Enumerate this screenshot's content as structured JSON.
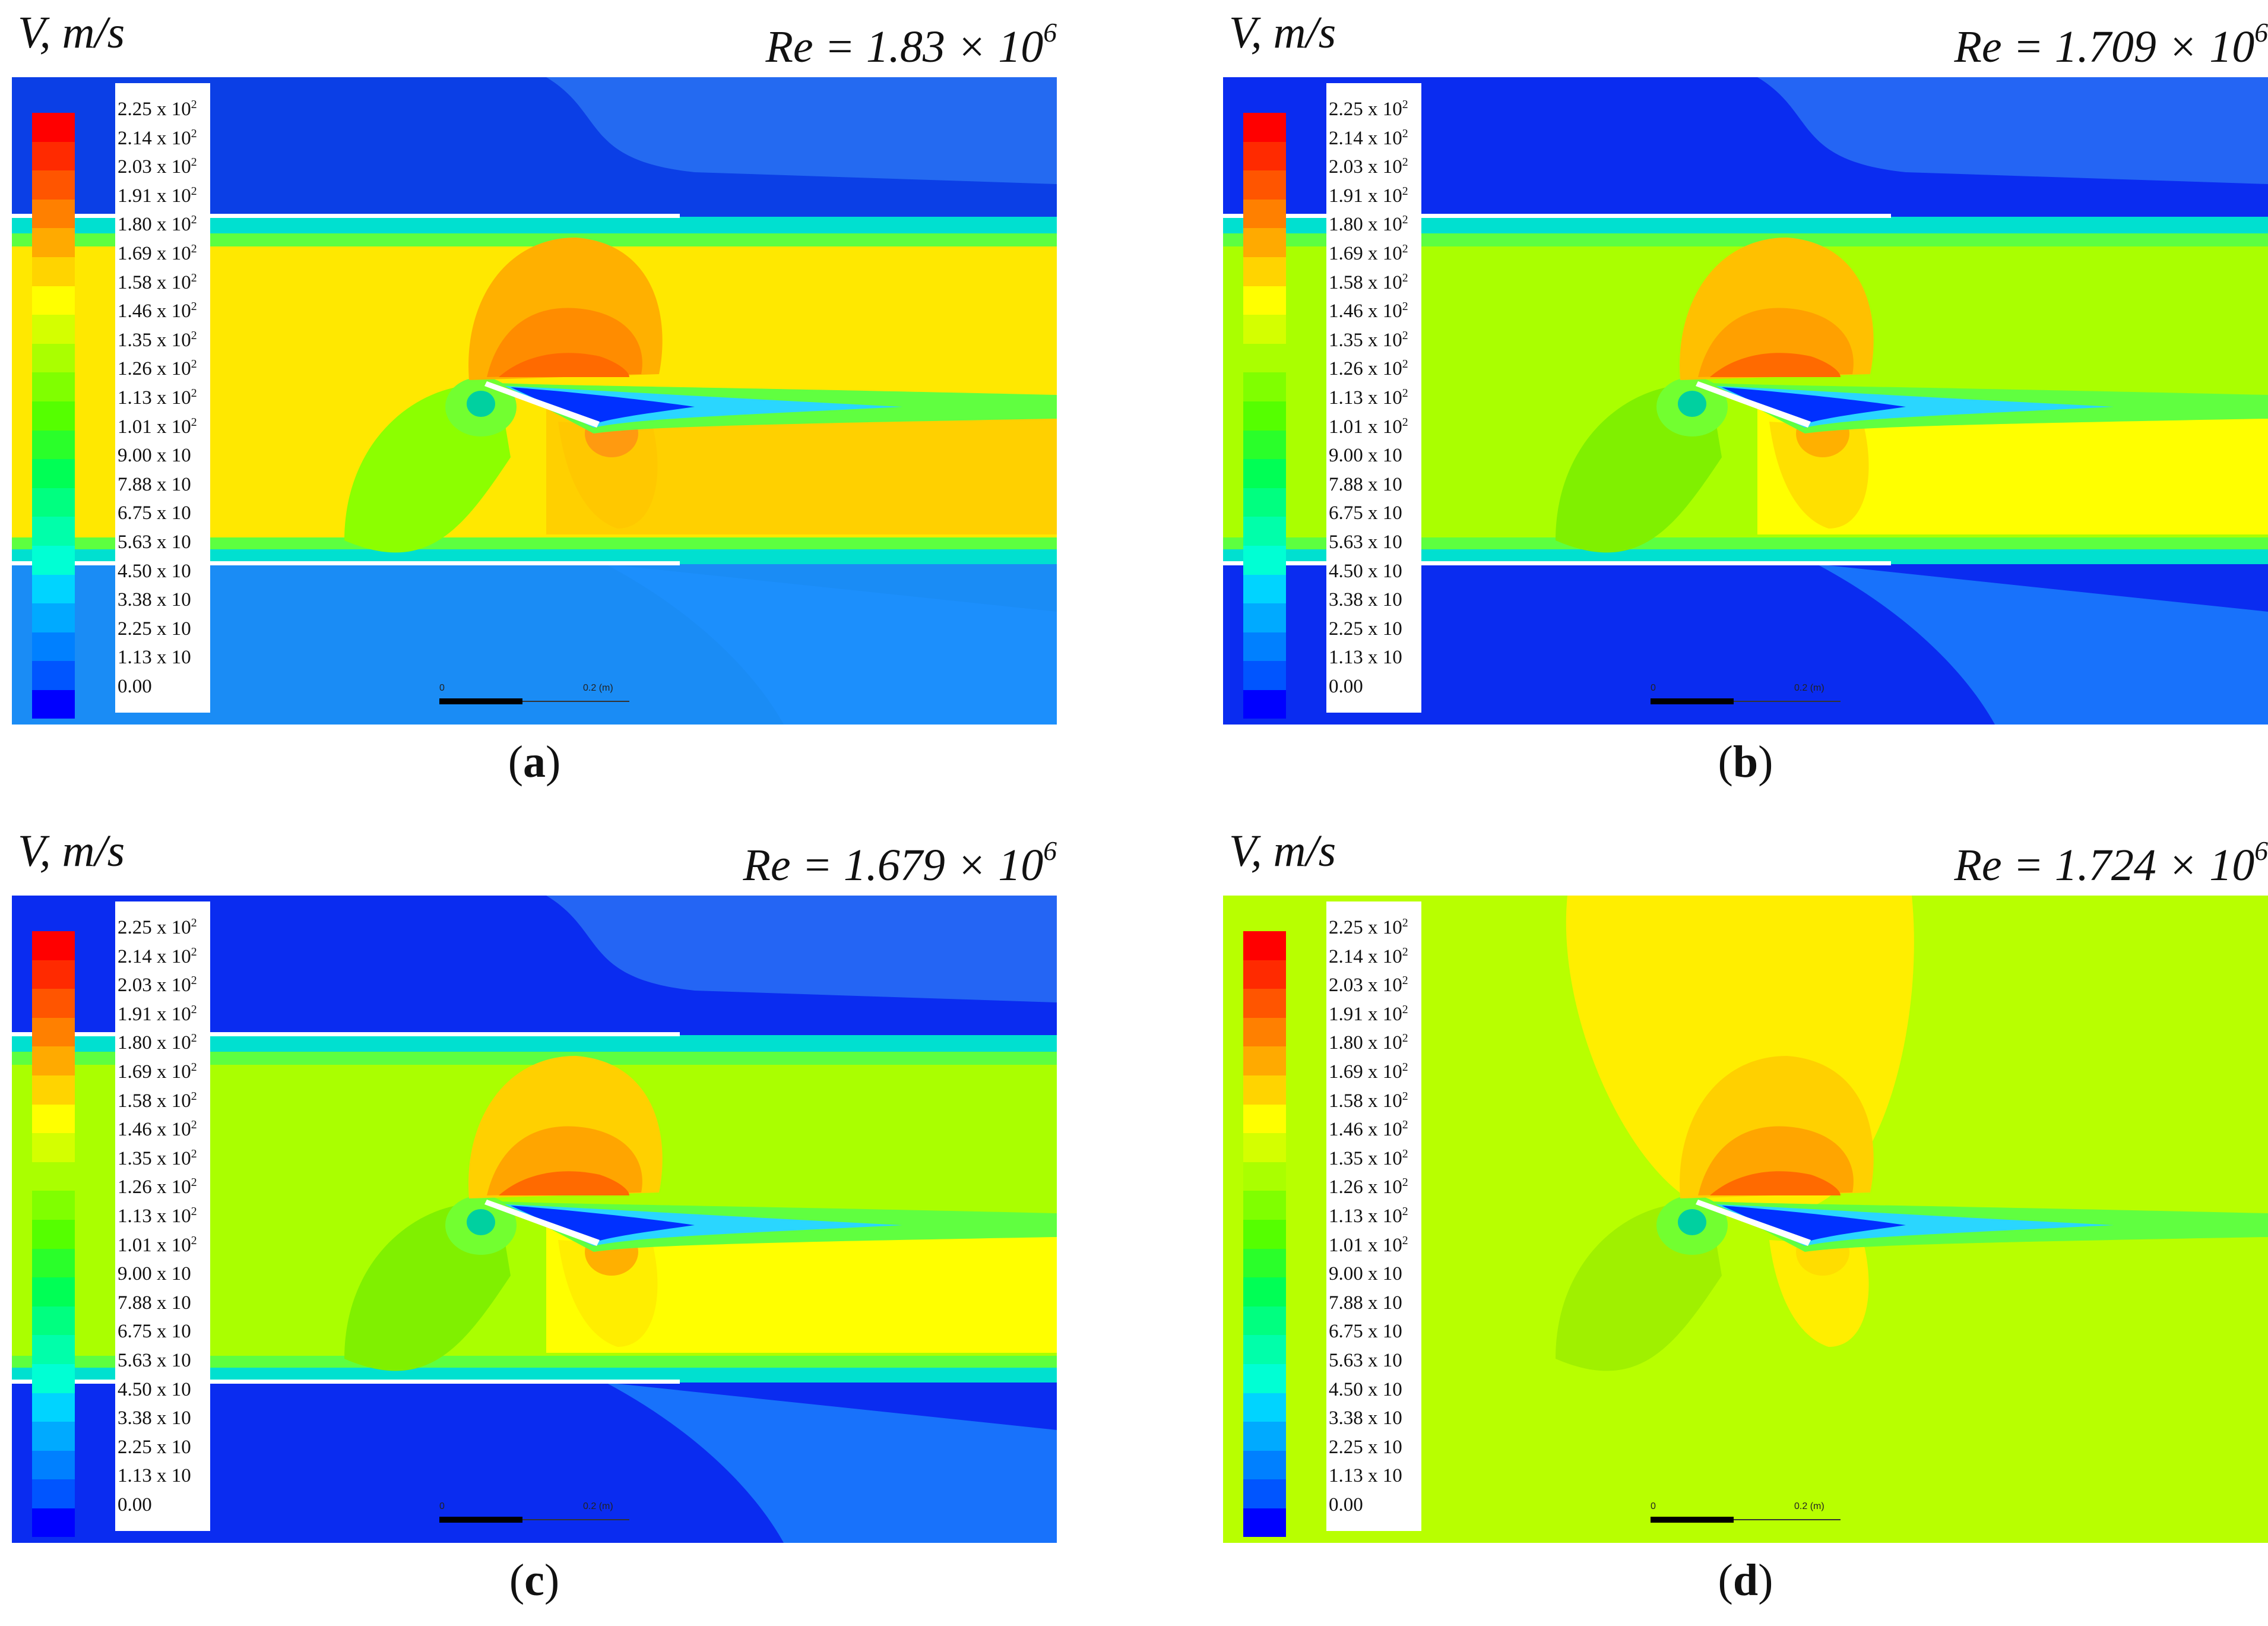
{
  "variable_label": "V, m/s",
  "re_prefix": "Re = ",
  "legend_ticks": [
    {
      "base": "2.25 x 10",
      "exp": "2"
    },
    {
      "base": "2.14 x 10",
      "exp": "2"
    },
    {
      "base": "2.03 x 10",
      "exp": "2"
    },
    {
      "base": "1.91 x 10",
      "exp": "2"
    },
    {
      "base": "1.80 x 10",
      "exp": "2"
    },
    {
      "base": "1.69 x 10",
      "exp": "2"
    },
    {
      "base": "1.58 x 10",
      "exp": "2"
    },
    {
      "base": "1.46 x 10",
      "exp": "2"
    },
    {
      "base": "1.35 x 10",
      "exp": "2"
    },
    {
      "base": "1.26 x 10",
      "exp": "2"
    },
    {
      "base": "1.13 x 10",
      "exp": "2"
    },
    {
      "base": "1.01 x 10",
      "exp": "2"
    },
    {
      "base": "9.00 x 10",
      "exp": ""
    },
    {
      "base": "7.88 x 10",
      "exp": ""
    },
    {
      "base": "6.75 x 10",
      "exp": ""
    },
    {
      "base": "5.63 x 10",
      "exp": ""
    },
    {
      "base": "4.50 x 10",
      "exp": ""
    },
    {
      "base": "3.38 x 10",
      "exp": ""
    },
    {
      "base": "2.25 x 10",
      "exp": ""
    },
    {
      "base": "1.13 x 10",
      "exp": ""
    },
    {
      "base": "0.00",
      "exp": ""
    }
  ],
  "colormap": [
    "#ff0000",
    "#ff2a00",
    "#ff5500",
    "#ff8000",
    "#ffaa00",
    "#ffd400",
    "#ffff00",
    "#d4ff00",
    "#aaff00",
    "#80ff00",
    "#55ff00",
    "#2aff2a",
    "#00ff55",
    "#00ff80",
    "#00ffaa",
    "#00ffd4",
    "#00d4ff",
    "#00aaff",
    "#0080ff",
    "#0055ff",
    "#0000ff"
  ],
  "scale_bar": {
    "zero_label": "0",
    "end_label": "0.2 (m)"
  },
  "panels": [
    {
      "label": "a",
      "re_mantissa": "1.83",
      "re_times": " × 10",
      "re_exp": "6",
      "walls": true,
      "colors": {
        "outer_top": "#0b3fe6",
        "outer_bottom": "#1a8cf5",
        "jet": "#ffe800",
        "upper_bubble": "#ffb000",
        "upper_core": "#ff8c00",
        "lower_bubble": "#ffc800",
        "lower_core": "#ff9a10",
        "wake": "#2ad6ff",
        "stall": "#8cff00",
        "green": "#72ff30",
        "downstream": "#ffd000"
      }
    },
    {
      "label": "b",
      "re_mantissa": "1.709",
      "re_times": " × 10",
      "re_exp": "6",
      "walls": true,
      "colors": {
        "outer_top": "#0a2cf0",
        "outer_bottom": "#0a2cf0",
        "jet": "#aaff00",
        "upper_bubble": "#ffc000",
        "upper_core": "#ffa000",
        "lower_bubble": "#ffe000",
        "lower_core": "#ffb000",
        "wake": "#2ad6ff",
        "stall": "#80f000",
        "green": "#72ff30",
        "downstream": "#ffff00"
      }
    },
    {
      "label": "c",
      "re_mantissa": "1.679",
      "re_times": " × 10",
      "re_exp": "6",
      "walls": true,
      "colors": {
        "outer_top": "#0a2cf0",
        "outer_bottom": "#0a2cf0",
        "jet": "#aaff00",
        "upper_bubble": "#ffd000",
        "upper_core": "#ffa500",
        "lower_bubble": "#ffee00",
        "lower_core": "#ffb000",
        "wake": "#2ad6ff",
        "stall": "#80f000",
        "green": "#72ff30",
        "downstream": "#ffff00"
      }
    },
    {
      "label": "d",
      "re_mantissa": "1.724",
      "re_times": " × 10",
      "re_exp": "6",
      "walls": false,
      "colors": {
        "outer_top": "#b8ff00",
        "outer_bottom": "#b8ff00",
        "jet": "#b8ff00",
        "upper_bubble": "#ffd000",
        "upper_core": "#ffa500",
        "lower_bubble": "#ffee00",
        "lower_core": "#ffdd00",
        "wake": "#2ad6ff",
        "stall": "#a0f000",
        "green": "#72ff30",
        "downstream": "#b8ff00"
      }
    }
  ]
}
